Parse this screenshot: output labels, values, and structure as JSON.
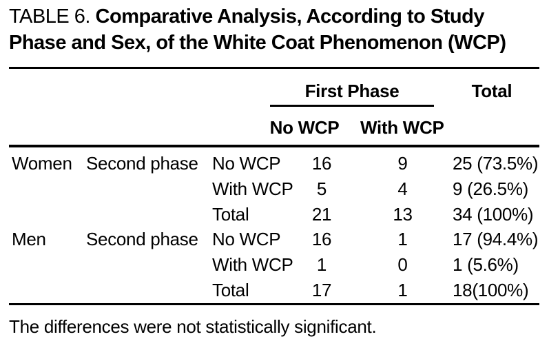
{
  "title": {
    "label": "TABLE 6.",
    "line1": "Comparative Analysis, According to Study",
    "line2": "Phase and Sex, of the White Coat Phenomenon (WCP)"
  },
  "header": {
    "group": "First Phase",
    "total": "Total",
    "sub_no_wcp": "No WCP",
    "sub_with_wcp": "With WCP"
  },
  "rows": [
    {
      "sex": "Women",
      "phase": "Second phase",
      "wcp": "No WCP",
      "first_no_wcp": "16",
      "first_with_wcp": "9",
      "total": "25 (73.5%)"
    },
    {
      "sex": "",
      "phase": "",
      "wcp": "With WCP",
      "first_no_wcp": "5",
      "first_with_wcp": "4",
      "total": "9 (26.5%)"
    },
    {
      "sex": "",
      "phase": "",
      "wcp": "Total",
      "first_no_wcp": "21",
      "first_with_wcp": "13",
      "total": "34 (100%)"
    },
    {
      "sex": "Men",
      "phase": "Second phase",
      "wcp": "No WCP",
      "first_no_wcp": "16",
      "first_with_wcp": "1",
      "total": "17 (94.4%)"
    },
    {
      "sex": "",
      "phase": "",
      "wcp": "With WCP",
      "first_no_wcp": "1",
      "first_with_wcp": "0",
      "total": "1 (5.6%)"
    },
    {
      "sex": "",
      "phase": "",
      "wcp": "Total",
      "first_no_wcp": "17",
      "first_with_wcp": "1",
      "total": "18(100%)"
    }
  ],
  "footnote": "The differences were not statistically significant.",
  "colors": {
    "text": "#000000",
    "background": "#ffffff",
    "rule": "#000000"
  }
}
